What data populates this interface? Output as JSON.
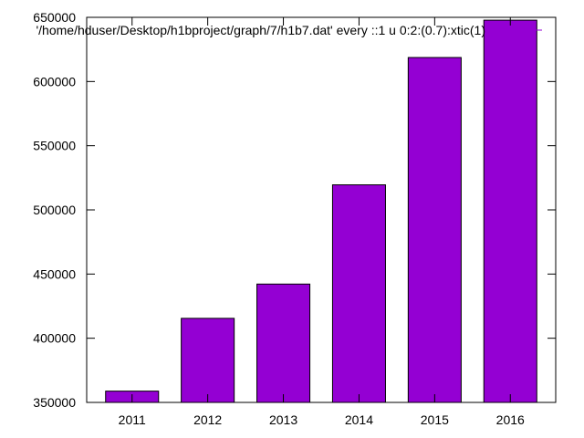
{
  "chart_data": {
    "type": "bar",
    "title": "",
    "xlabel": "",
    "ylabel": "",
    "categories": [
      "2011",
      "2012",
      "2013",
      "2014",
      "2015",
      "2016"
    ],
    "series": [
      {
        "name": "'/home/hduser/Desktop/h1bproject/graph/7/h1b7.dat' every ::1 u 0:2:(0.7):xtic(1)",
        "values": [
          358800,
          415500,
          442200,
          519500,
          618700,
          647800
        ],
        "color": "#9400d3"
      }
    ],
    "ylim": [
      350000,
      650000
    ],
    "yticks": [
      350000,
      400000,
      450000,
      500000,
      550000,
      600000,
      650000
    ],
    "bar_width": 0.7,
    "grid": false,
    "legend_position": "top-right"
  }
}
